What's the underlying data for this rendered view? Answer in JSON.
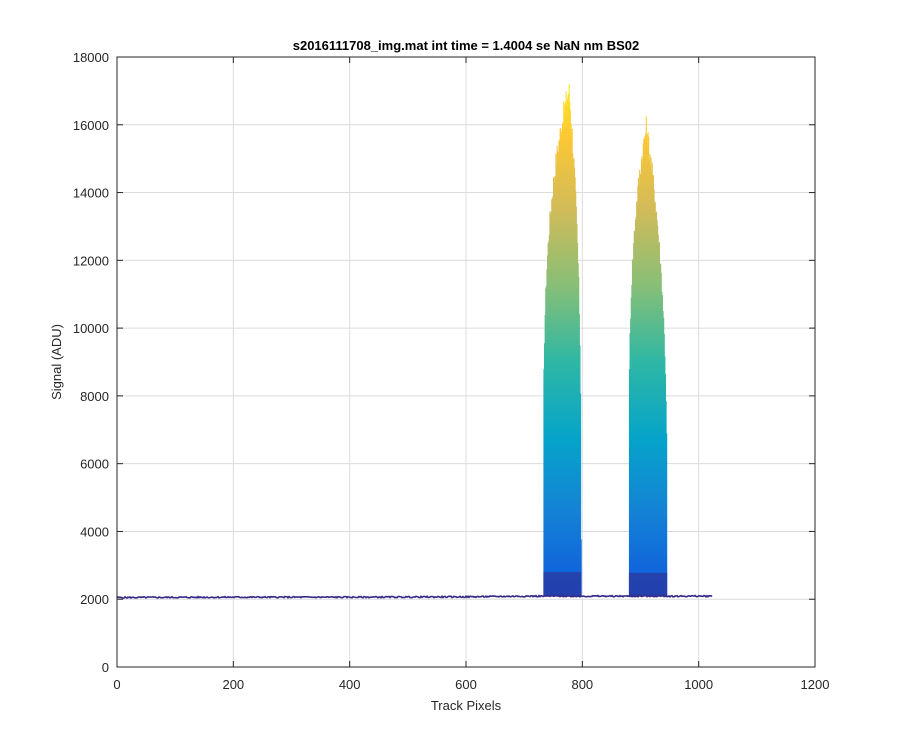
{
  "chart_data": {
    "type": "line",
    "title": "s2016111708_img.mat int time = 1.4004 se  NaN nm BS02",
    "xlabel": "Track Pixels",
    "ylabel": "Signal (ADU)",
    "xlim": [
      0,
      1200
    ],
    "ylim": [
      0,
      18000
    ],
    "xticks": [
      "0",
      "200",
      "400",
      "600",
      "800",
      "1000",
      "1200"
    ],
    "yticks": [
      "0",
      "2000",
      "4000",
      "6000",
      "8000",
      "10000",
      "12000",
      "14000",
      "16000",
      "18000"
    ],
    "grid": true,
    "baseline": {
      "x": [
        0,
        200,
        400,
        600,
        700,
        1024
      ],
      "y": [
        2050,
        2060,
        2060,
        2070,
        2090,
        2090
      ]
    },
    "peaks": [
      {
        "x_start": 733,
        "x_end": 798,
        "peak_x": 777,
        "peak_y": 18000,
        "base_y": 2100
      },
      {
        "x_start": 880,
        "x_end": 946,
        "peak_x": 910,
        "peak_y": 16800,
        "base_y": 2080
      }
    ],
    "colormap": [
      "#352a87",
      "#0f5cdd",
      "#1481d6",
      "#06a4ca",
      "#2eb7a4",
      "#87bf77",
      "#d1bb59",
      "#fec832",
      "#f9fb0e"
    ]
  }
}
